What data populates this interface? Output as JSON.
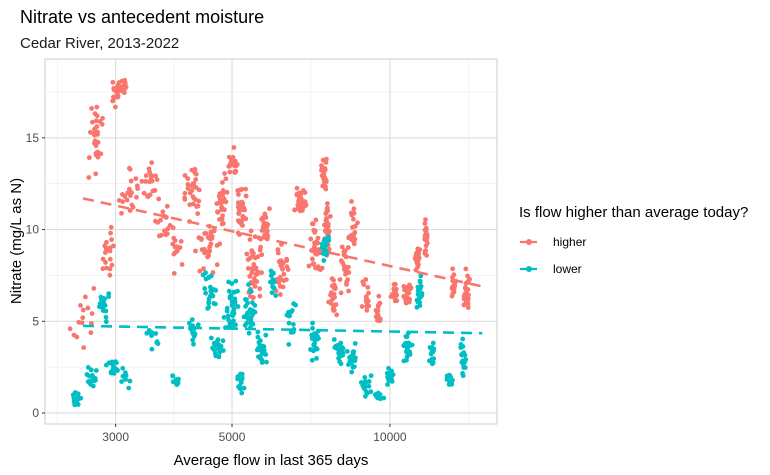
{
  "chart_data": {
    "type": "scatter",
    "title": "Nitrate vs antecedent moisture",
    "subtitle": "Cedar River, 2013-2022",
    "xlabel": "Average flow in last 365 days",
    "ylabel": "Nitrate (mg/L as N)",
    "x_scale": "log10",
    "xlim": [
      2200,
      16000
    ],
    "ylim": [
      -0.6,
      19.3
    ],
    "x_ticks": [
      3000,
      5000,
      10000
    ],
    "x_tick_labels": [
      "3000",
      "5000",
      "10000"
    ],
    "y_ticks": [
      0,
      5,
      10,
      15
    ],
    "y_tick_labels": [
      "0",
      "5",
      "10",
      "15"
    ],
    "grid": true,
    "legend": {
      "title": "Is flow higher than average today?",
      "placement": "right"
    },
    "series": [
      {
        "name": "higher",
        "color": "#F8766D",
        "trend": [
          [
            2600,
            11.7
          ],
          [
            15000,
            6.9
          ]
        ],
        "clusters": [
          [
            2600,
            5.0,
            250,
            3.0,
            15
          ],
          [
            2750,
            15.0,
            100,
            2.5,
            30
          ],
          [
            2900,
            8.5,
            120,
            2.0,
            20
          ],
          [
            3000,
            17.5,
            80,
            1.0,
            20
          ],
          [
            3100,
            17.8,
            60,
            0.8,
            15
          ],
          [
            3200,
            12.0,
            200,
            2.0,
            20
          ],
          [
            3500,
            12.5,
            180,
            1.5,
            20
          ],
          [
            3700,
            10.5,
            150,
            1.5,
            15
          ],
          [
            3900,
            9.0,
            150,
            2.0,
            15
          ],
          [
            4200,
            12.0,
            250,
            2.0,
            30
          ],
          [
            4500,
            9.0,
            300,
            2.5,
            35
          ],
          [
            4800,
            11.5,
            200,
            1.8,
            30
          ],
          [
            5000,
            13.5,
            150,
            1.2,
            25
          ],
          [
            5200,
            11.0,
            200,
            2.0,
            30
          ],
          [
            5500,
            8.0,
            250,
            2.5,
            40
          ],
          [
            5800,
            10.0,
            200,
            2.0,
            25
          ],
          [
            6200,
            7.5,
            300,
            2.0,
            25
          ],
          [
            6800,
            11.5,
            300,
            1.5,
            25
          ],
          [
            7200,
            9.0,
            250,
            2.5,
            30
          ],
          [
            7500,
            13.0,
            150,
            1.2,
            25
          ],
          [
            7600,
            10.0,
            150,
            2.5,
            35
          ],
          [
            7800,
            6.5,
            200,
            1.5,
            20
          ],
          [
            8200,
            8.0,
            250,
            2.0,
            25
          ],
          [
            8500,
            10.0,
            200,
            2.0,
            20
          ],
          [
            9000,
            6.5,
            250,
            1.5,
            15
          ],
          [
            9500,
            5.5,
            200,
            1.0,
            15
          ],
          [
            10200,
            6.5,
            300,
            0.8,
            20
          ],
          [
            10800,
            6.5,
            250,
            1.2,
            20
          ],
          [
            11300,
            8.5,
            200,
            1.0,
            25
          ],
          [
            11700,
            9.5,
            150,
            1.5,
            25
          ],
          [
            13200,
            7.0,
            200,
            1.2,
            15
          ],
          [
            14000,
            6.5,
            300,
            1.5,
            25
          ]
        ]
      },
      {
        "name": "lower",
        "color": "#00BFC4",
        "trend": [
          [
            2600,
            4.75
          ],
          [
            15000,
            4.35
          ]
        ],
        "clusters": [
          [
            2520,
            0.8,
            60,
            0.5,
            25
          ],
          [
            2700,
            2.0,
            100,
            1.0,
            15
          ],
          [
            2850,
            6.0,
            100,
            1.2,
            20
          ],
          [
            2950,
            2.5,
            100,
            0.8,
            15
          ],
          [
            3150,
            2.0,
            100,
            0.7,
            10
          ],
          [
            3550,
            4.0,
            150,
            1.0,
            10
          ],
          [
            3900,
            1.8,
            150,
            0.6,
            10
          ],
          [
            4200,
            4.5,
            150,
            1.2,
            15
          ],
          [
            4500,
            6.5,
            200,
            1.5,
            25
          ],
          [
            4700,
            3.5,
            200,
            1.0,
            20
          ],
          [
            5000,
            6.0,
            200,
            2.0,
            35
          ],
          [
            5200,
            1.5,
            150,
            1.0,
            15
          ],
          [
            5400,
            5.5,
            200,
            2.0,
            30
          ],
          [
            5700,
            3.5,
            200,
            1.5,
            25
          ],
          [
            6000,
            7.0,
            150,
            1.0,
            15
          ],
          [
            6500,
            5.0,
            200,
            1.5,
            15
          ],
          [
            7200,
            4.0,
            200,
            1.5,
            25
          ],
          [
            7500,
            9.0,
            200,
            1.5,
            20
          ],
          [
            8000,
            3.5,
            250,
            1.0,
            25
          ],
          [
            8500,
            3.0,
            300,
            1.0,
            20
          ],
          [
            9000,
            1.5,
            300,
            0.8,
            20
          ],
          [
            9500,
            1.0,
            300,
            0.5,
            10
          ],
          [
            10000,
            2.0,
            300,
            0.8,
            20
          ],
          [
            10800,
            3.5,
            300,
            1.2,
            25
          ],
          [
            11400,
            6.5,
            200,
            1.5,
            25
          ],
          [
            12000,
            3.0,
            250,
            1.2,
            15
          ],
          [
            13000,
            1.8,
            300,
            0.5,
            15
          ],
          [
            13800,
            3.0,
            300,
            1.2,
            20
          ]
        ]
      }
    ]
  }
}
